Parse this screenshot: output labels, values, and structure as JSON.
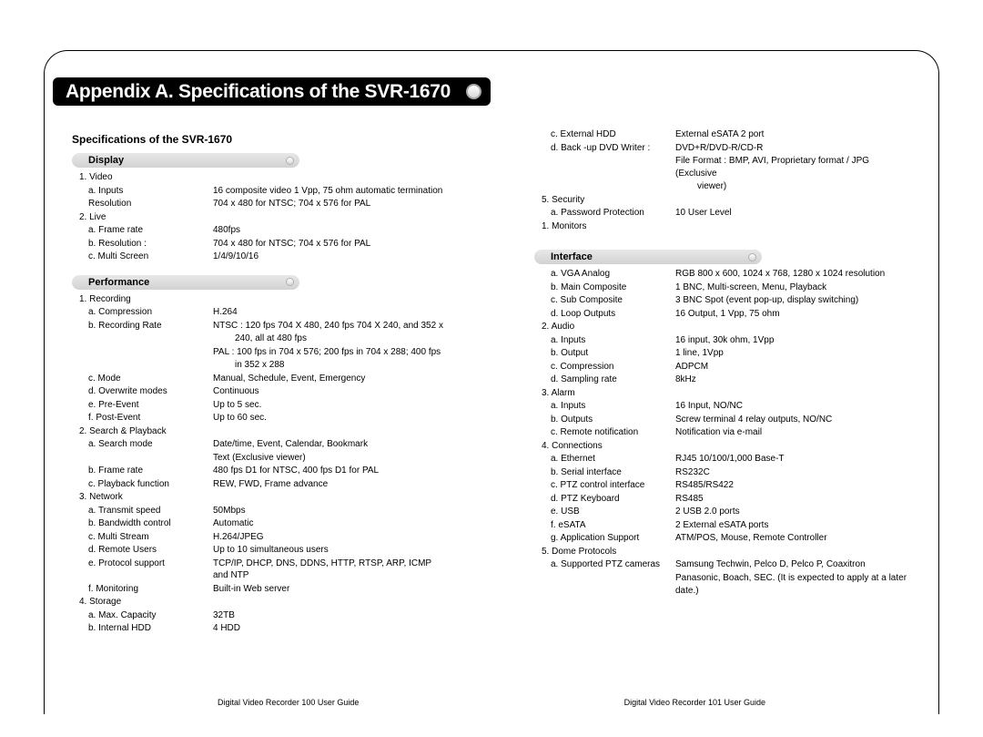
{
  "title": "Appendix A. Specifications of the SVR-1670",
  "section_header": "Specifications of the SVR-1670",
  "colors": {
    "title_bg": "#000000",
    "title_fg": "#ffffff",
    "bar_grad_top": "#e8e8e8",
    "bar_grad_bot": "#d2d2d2",
    "page_bg": "#ffffff"
  },
  "left": {
    "display": {
      "heading": "Display",
      "rows": [
        {
          "l": "1. Video",
          "v": "",
          "i": 1
        },
        {
          "l": "a. Inputs",
          "v": "16 composite video 1 Vpp, 75 ohm automatic termination",
          "i": 2
        },
        {
          "l": "Resolution",
          "v": "704 x 480 for NTSC; 704 x 576 for PAL",
          "i": 2
        },
        {
          "l": "2. Live",
          "v": "",
          "i": 1
        },
        {
          "l": "a. Frame rate",
          "v": "480fps",
          "i": 2
        },
        {
          "l": "b. Resolution :",
          "v": "704 x 480 for NTSC; 704 x 576 for PAL",
          "i": 2
        },
        {
          "l": "c. Multi Screen",
          "v": "1/4/9/10/16",
          "i": 2
        }
      ]
    },
    "performance": {
      "heading": "Performance",
      "rows": [
        {
          "l": "1. Recording",
          "v": "",
          "i": 1
        },
        {
          "l": "a. Compression",
          "v": "H.264",
          "i": 2
        },
        {
          "l": "b. Recording Rate",
          "v": "NTSC : 120 fps 704 X 480, 240 fps 704 X 240, and 352 x",
          "i": 2
        },
        {
          "l": "",
          "v": "240, all at 480 fps",
          "i": 3,
          "cont": true
        },
        {
          "l": "",
          "v": "PAL : 100 fps in 704 x 576; 200 fps in 704 x 288;  400 fps",
          "i": 2,
          "cont": true
        },
        {
          "l": "",
          "v": "in 352 x 288",
          "i": 3,
          "cont": true
        },
        {
          "l": "c. Mode",
          "v": "Manual, Schedule, Event, Emergency",
          "i": 2
        },
        {
          "l": "d. Overwrite modes",
          "v": "Continuous",
          "i": 2
        },
        {
          "l": "e. Pre-Event",
          "v": "Up to 5 sec.",
          "i": 2
        },
        {
          "l": "f. Post-Event",
          "v": "Up to 60 sec.",
          "i": 2
        },
        {
          "l": "2. Search & Playback",
          "v": "",
          "i": 1
        },
        {
          "l": "a.  Search mode",
          "v": "Date/time, Event, Calendar, Bookmark",
          "i": 2
        },
        {
          "l": "",
          "v": "Text (Exclusive viewer)",
          "i": 2,
          "cont": true
        },
        {
          "l": "b. Frame rate",
          "v": "480 fps D1 for NTSC,  400 fps D1 for PAL",
          "i": 2
        },
        {
          "l": "c. Playback function",
          "v": "REW, FWD, Frame advance",
          "i": 2
        },
        {
          "l": "3. Network",
          "v": "",
          "i": 1
        },
        {
          "l": "a. Transmit speed",
          "v": "50Mbps",
          "i": 2
        },
        {
          "l": "b. Bandwidth control",
          "v": "Automatic",
          "i": 2
        },
        {
          "l": "c. Multi Stream",
          "v": "H.264/JPEG",
          "i": 2
        },
        {
          "l": "d. Remote Users",
          "v": "Up to 10 simultaneous users",
          "i": 2
        },
        {
          "l": "e. Protocol support",
          "v": "TCP/IP, DHCP, DNS, DDNS, HTTP, RTSP, ARP, ICMP and NTP",
          "i": 2
        },
        {
          "l": "f. Monitoring",
          "v": "Built-in Web server",
          "i": 2
        },
        {
          "l": "4. Storage",
          "v": "",
          "i": 1
        },
        {
          "l": "a. Max. Capacity",
          "v": "32TB",
          "i": 2
        },
        {
          "l": "b. Internal HDD",
          "v": "4 HDD",
          "i": 2
        }
      ]
    }
  },
  "right": {
    "top_rows": [
      {
        "l": "c. External HDD",
        "v": "External eSATA 2 port",
        "i": 2
      },
      {
        "l": "d. Back -up DVD Writer :",
        "v": "DVD+R/DVD-R/CD-R",
        "i": 2
      },
      {
        "l": "",
        "v": "File Format : BMP,  AVI, Proprietary format / JPG (Exclusive",
        "i": 2,
        "cont": true
      },
      {
        "l": "",
        "v": "viewer)",
        "i": 3,
        "cont": true
      },
      {
        "l": "5.  Security",
        "v": "",
        "i": 1
      },
      {
        "l": "a. Password Protection",
        "v": "10 User Level",
        "i": 2
      },
      {
        "l": "1. Monitors",
        "v": "",
        "i": 1
      }
    ],
    "interface": {
      "heading": "Interface",
      "rows": [
        {
          "l": "a. VGA Analog",
          "v": "RGB 800 x 600, 1024 x 768, 1280 x 1024 resolution",
          "i": 2
        },
        {
          "l": "b. Main Composite",
          "v": "1 BNC,  Multi-screen, Menu, Playback",
          "i": 2
        },
        {
          "l": "c. Sub Composite",
          "v": "3 BNC Spot (event pop-up, display switching)",
          "i": 2
        },
        {
          "l": "d. Loop Outputs",
          "v": "16 Output, 1 Vpp, 75 ohm",
          "i": 2
        },
        {
          "l": "2. Audio",
          "v": "",
          "i": 1
        },
        {
          "l": "a. Inputs",
          "v": "16 input, 30k ohm, 1Vpp",
          "i": 2
        },
        {
          "l": "b. Output",
          "v": "1 line, 1Vpp",
          "i": 2
        },
        {
          "l": "c. Compression",
          "v": "ADPCM",
          "i": 2
        },
        {
          "l": "d. Sampling rate",
          "v": "8kHz",
          "i": 2
        },
        {
          "l": "3. Alarm",
          "v": "",
          "i": 1
        },
        {
          "l": "a. Inputs",
          "v": "16 Input, NO/NC",
          "i": 2
        },
        {
          "l": "b. Outputs",
          "v": "Screw terminal 4 relay outputs, NO/NC",
          "i": 2
        },
        {
          "l": "c. Remote notification",
          "v": "Notification via e-mail",
          "i": 2
        },
        {
          "l": "4. Connections",
          "v": "",
          "i": 1
        },
        {
          "l": "a. Ethernet",
          "v": "RJ45 10/100/1,000 Base-T",
          "i": 2
        },
        {
          "l": "b. Serial interface",
          "v": "RS232C",
          "i": 2
        },
        {
          "l": "c. PTZ control interface",
          "v": "RS485/RS422",
          "i": 2
        },
        {
          "l": "d. PTZ Keyboard",
          "v": "RS485",
          "i": 2
        },
        {
          "l": "e. USB",
          "v": "2 USB 2.0 ports",
          "i": 2
        },
        {
          "l": "f. eSATA",
          "v": "2 External eSATA ports",
          "i": 2
        },
        {
          "l": "g. Application Support",
          "v": "ATM/POS, Mouse, Remote Controller",
          "i": 2
        },
        {
          "l": "5. Dome Protocols",
          "v": "",
          "i": 1
        },
        {
          "l": "a. Supported PTZ cameras",
          "v": "Samsung Techwin, Pelco D, Pelco P, Coaxitron",
          "i": 2
        },
        {
          "l": "",
          "v": "Panasonic, Boach, SEC. (It is expected to apply at a later",
          "i": 2,
          "cont": true
        },
        {
          "l": "",
          "v": "date.)",
          "i": 2,
          "cont": true
        }
      ]
    }
  },
  "footer": {
    "left": "Digital Video Recorder 100 User Guide",
    "right": "Digital Video Recorder 101 User Guide"
  }
}
